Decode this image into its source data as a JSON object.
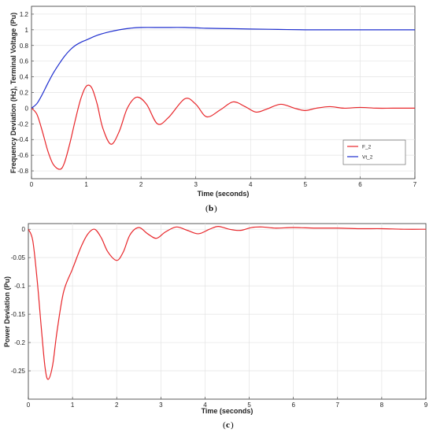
{
  "colors": {
    "red": "#e8262a",
    "blue": "#1f2fcf",
    "grid": "#e3e3e3",
    "axis": "#333333"
  },
  "captions": {
    "b": "b",
    "c": "c"
  },
  "chart_data": [
    {
      "type": "line",
      "xlabel": "Time (seconds)",
      "ylabel": "Frequency Deviation (Hz), Terminal Voltage (Pu)",
      "xlim": [
        0,
        7
      ],
      "ylim": [
        -0.9,
        1.3
      ],
      "xticks": [
        0,
        1,
        2,
        3,
        4,
        5,
        6,
        7
      ],
      "yticks": [
        -0.8,
        -0.6,
        -0.4,
        -0.2,
        0,
        0.2,
        0.4,
        0.6,
        0.8,
        1,
        1.2
      ],
      "grid": true,
      "legend_position": "lower-right",
      "series": [
        {
          "name": "F_2",
          "color": "#e8262a",
          "x": [
            0,
            0.1,
            0.2,
            0.3,
            0.4,
            0.52,
            0.6,
            0.7,
            0.8,
            0.9,
            1.0,
            1.1,
            1.2,
            1.3,
            1.45,
            1.6,
            1.75,
            1.92,
            2.1,
            2.3,
            2.5,
            2.8,
            3.0,
            3.2,
            3.45,
            3.68,
            3.9,
            4.1,
            4.3,
            4.55,
            4.8,
            5.0,
            5.2,
            5.45,
            5.7,
            6.0,
            6.3,
            6.6,
            7.0
          ],
          "y": [
            0,
            -0.08,
            -0.3,
            -0.55,
            -0.72,
            -0.78,
            -0.7,
            -0.45,
            -0.15,
            0.12,
            0.28,
            0.26,
            0.05,
            -0.25,
            -0.46,
            -0.3,
            0.0,
            0.14,
            0.05,
            -0.2,
            -0.12,
            0.12,
            0.05,
            -0.11,
            -0.02,
            0.08,
            0.02,
            -0.05,
            -0.01,
            0.05,
            0.0,
            -0.03,
            0.0,
            0.02,
            0.0,
            0.01,
            0.0,
            0.0,
            0.0
          ]
        },
        {
          "name": "Vt_2",
          "color": "#1f2fcf",
          "x": [
            0,
            0.1,
            0.2,
            0.3,
            0.4,
            0.5,
            0.6,
            0.7,
            0.8,
            0.9,
            1.0,
            1.2,
            1.4,
            1.6,
            1.8,
            2.0,
            2.4,
            2.8,
            3.2,
            3.6,
            4.0,
            4.5,
            5.0,
            5.5,
            6.0,
            6.5,
            7.0
          ],
          "y": [
            0,
            0.06,
            0.18,
            0.32,
            0.45,
            0.56,
            0.66,
            0.74,
            0.8,
            0.84,
            0.87,
            0.93,
            0.97,
            1.0,
            1.02,
            1.03,
            1.03,
            1.03,
            1.02,
            1.015,
            1.01,
            1.005,
            1.0,
            1.0,
            1.0,
            1.0,
            1.0
          ]
        }
      ]
    },
    {
      "type": "line",
      "xlabel": "Time (seconds)",
      "ylabel": "Power Deviation (Pu)",
      "xlim": [
        0,
        9
      ],
      "ylim": [
        -0.3,
        0.01
      ],
      "xticks": [
        0,
        1,
        2,
        3,
        4,
        5,
        6,
        7,
        8,
        9
      ],
      "yticks": [
        -0.25,
        -0.2,
        -0.15,
        -0.1,
        -0.05,
        0
      ],
      "grid": true,
      "series": [
        {
          "color": "#e8262a",
          "x": [
            0,
            0.1,
            0.2,
            0.3,
            0.38,
            0.45,
            0.55,
            0.65,
            0.8,
            1.0,
            1.2,
            1.35,
            1.5,
            1.65,
            1.8,
            2.0,
            2.15,
            2.3,
            2.5,
            2.7,
            2.9,
            3.1,
            3.35,
            3.6,
            3.85,
            4.1,
            4.3,
            4.55,
            4.8,
            5.05,
            5.3,
            5.6,
            6.0,
            6.5,
            7.0,
            7.5,
            8.0,
            8.5,
            9.0
          ],
          "y": [
            0,
            -0.02,
            -0.09,
            -0.18,
            -0.245,
            -0.265,
            -0.24,
            -0.18,
            -0.11,
            -0.07,
            -0.03,
            -0.008,
            0.0,
            -0.015,
            -0.04,
            -0.055,
            -0.04,
            -0.01,
            0.003,
            -0.008,
            -0.016,
            -0.005,
            0.004,
            -0.002,
            -0.008,
            0.0,
            0.005,
            0.0,
            -0.002,
            0.003,
            0.004,
            0.002,
            0.003,
            0.002,
            0.002,
            0.001,
            0.001,
            0.0,
            0.0
          ]
        }
      ]
    }
  ]
}
